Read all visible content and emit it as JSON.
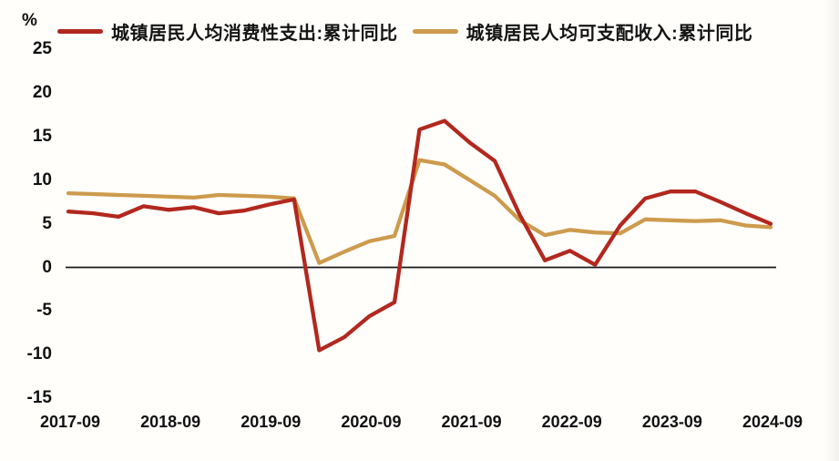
{
  "unit_label": "%",
  "legend": [
    {
      "label": "城镇居民人均消费性支出:累计同比",
      "color": "#b2281e"
    },
    {
      "label": "城镇居民人均可支配收入:累计同比",
      "color": "#cd9b4d"
    }
  ],
  "y_axis": {
    "ticks": [
      25,
      20,
      15,
      10,
      5,
      0,
      -5,
      -10,
      -15
    ]
  },
  "x_axis": {
    "labels": [
      "2017-09",
      "2018-09",
      "2019-09",
      "2020-09",
      "2021-09",
      "2022-09",
      "2023-09",
      "2024-09"
    ]
  },
  "chart_data": {
    "type": "line",
    "title": "",
    "xlabel": "",
    "ylabel": "%",
    "ylim": [
      -15,
      25
    ],
    "grid": false,
    "legend_position": "top",
    "zero_baseline": true,
    "categories": [
      "2017-09",
      "2017-12",
      "2018-03",
      "2018-06",
      "2018-09",
      "2018-12",
      "2019-03",
      "2019-06",
      "2019-09",
      "2019-12",
      "2020-03",
      "2020-06",
      "2020-09",
      "2020-12",
      "2021-03",
      "2021-06",
      "2021-09",
      "2021-12",
      "2022-03",
      "2022-06",
      "2022-09",
      "2022-12",
      "2023-03",
      "2023-06",
      "2023-09",
      "2023-12",
      "2024-03",
      "2024-06",
      "2024-09"
    ],
    "x_tick_labels": [
      "2017-09",
      "2018-09",
      "2019-09",
      "2020-09",
      "2021-09",
      "2022-09",
      "2023-09",
      "2024-09"
    ],
    "series": [
      {
        "name": "城镇居民人均消费性支出:累计同比",
        "color": "#b2281e",
        "values": [
          6.4,
          6.2,
          5.8,
          7.0,
          6.6,
          6.9,
          6.2,
          6.5,
          7.2,
          7.8,
          -9.5,
          -8.0,
          -5.6,
          -4.0,
          15.8,
          16.8,
          14.3,
          12.2,
          6.0,
          0.8,
          1.9,
          0.3,
          4.8,
          7.9,
          8.7,
          8.7,
          7.5,
          6.2,
          5.0
        ]
      },
      {
        "name": "城镇居民人均可支配收入:累计同比",
        "color": "#cd9b4d",
        "values": [
          8.5,
          8.4,
          8.3,
          8.2,
          8.1,
          8.0,
          8.3,
          8.2,
          8.1,
          7.9,
          0.5,
          1.8,
          3.0,
          3.6,
          12.3,
          11.8,
          10.0,
          8.2,
          5.4,
          3.7,
          4.3,
          4.0,
          3.9,
          5.5,
          5.4,
          5.3,
          5.4,
          4.8,
          4.6
        ]
      }
    ]
  }
}
